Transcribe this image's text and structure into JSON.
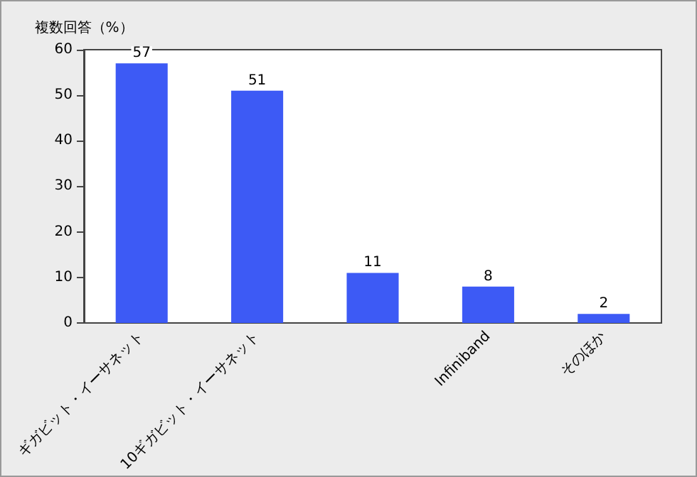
{
  "chart_data": {
    "type": "bar",
    "ylabel": "複数回答（%）",
    "categories": [
      "ギガビット・イーサネット",
      "10ギガビット・イーサネット",
      null,
      "Infiniband",
      "そのほか"
    ],
    "values": [
      57,
      51,
      11,
      8,
      2
    ],
    "color": "#3d5af5",
    "ylim": [
      0,
      60
    ],
    "yticks": [
      0,
      10,
      20,
      30,
      40,
      50,
      60
    ],
    "grid": false,
    "data_labels": true
  }
}
